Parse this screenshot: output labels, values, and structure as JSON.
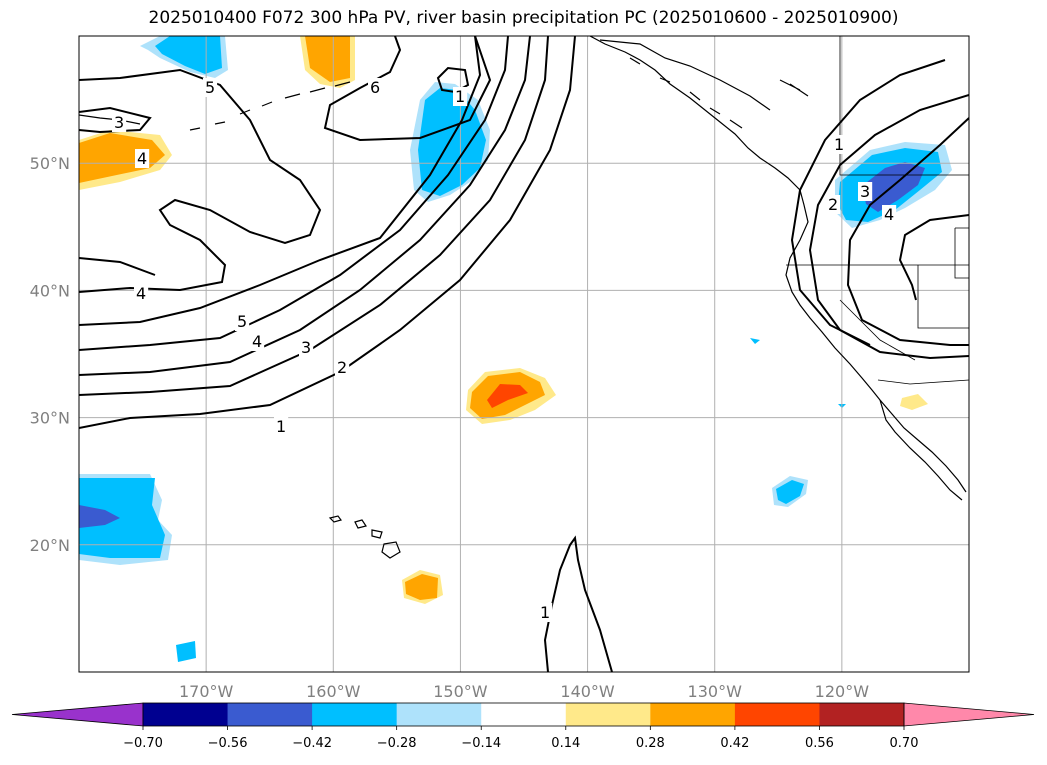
{
  "title": "2025010400 F072 300 hPa PV, river basin precipitation PC (2025010600 - 2025010900)",
  "map": {
    "lon_range": [
      -180,
      -110
    ],
    "lat_range": [
      10,
      60
    ],
    "lon_ticks": [
      {
        "lon": -170,
        "label": "170°W"
      },
      {
        "lon": -160,
        "label": "160°W"
      },
      {
        "lon": -150,
        "label": "150°W"
      },
      {
        "lon": -140,
        "label": "140°W"
      },
      {
        "lon": -130,
        "label": "130°W"
      },
      {
        "lon": -120,
        "label": "120°W"
      }
    ],
    "lat_ticks": [
      {
        "lat": 20,
        "label": "20°N"
      },
      {
        "lat": 30,
        "label": "30°N"
      },
      {
        "lat": 40,
        "label": "40°N"
      },
      {
        "lat": 50,
        "label": "50°N"
      }
    ],
    "grid": true
  },
  "colorbar": {
    "ticks": [
      "−0.70",
      "−0.56",
      "−0.42",
      "−0.28",
      "−0.14",
      "0.14",
      "0.28",
      "0.42",
      "0.56",
      "0.70"
    ],
    "under_color": "#9932cc",
    "over_color": "#ff88aa",
    "colors": [
      "#000090",
      "#3a5bd0",
      "#00bfff",
      "#aee2fb",
      "#ffffff",
      "#ffe98a",
      "#ffa500",
      "#ff4500",
      "#b22222"
    ]
  },
  "pv_contour_labels": [
    "1",
    "2",
    "3",
    "4",
    "5",
    "6"
  ]
}
